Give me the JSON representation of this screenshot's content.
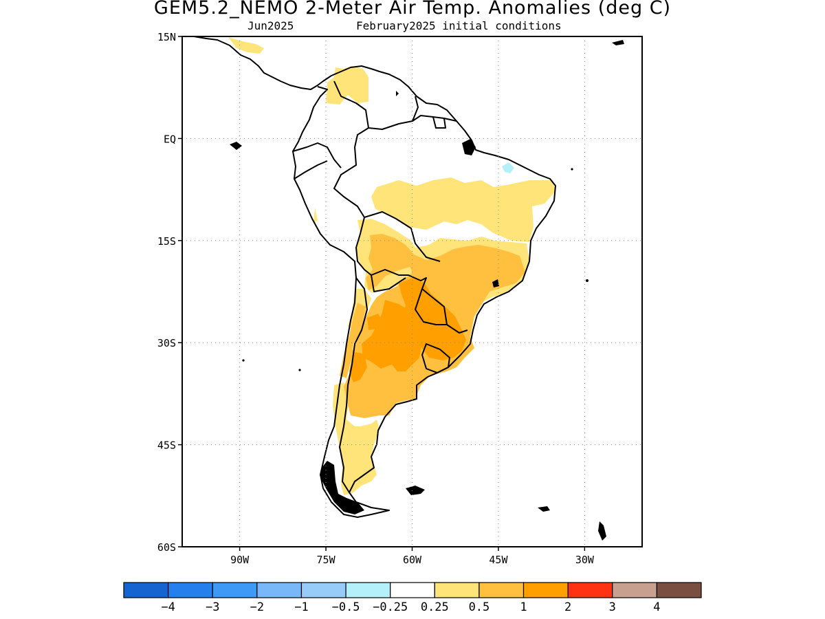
{
  "title": "GEM5.2_NEMO 2-Meter Air Temp. Anomalies (deg C)",
  "subtitle_left": "Jun2025",
  "subtitle_right": "February2025 initial conditions",
  "map": {
    "lon_range": [
      -100,
      -20
    ],
    "lat_range": [
      -60,
      15
    ],
    "lat_ticks": [
      {
        "value": 15,
        "label": "15N"
      },
      {
        "value": 0,
        "label": "EQ"
      },
      {
        "value": -15,
        "label": "15S"
      },
      {
        "value": -30,
        "label": "30S"
      },
      {
        "value": -45,
        "label": "45S"
      },
      {
        "value": -60,
        "label": "60S"
      }
    ],
    "lon_ticks": [
      {
        "value": -90,
        "label": "90W"
      },
      {
        "value": -75,
        "label": "75W"
      },
      {
        "value": -60,
        "label": "60W"
      },
      {
        "value": -45,
        "label": "45W"
      },
      {
        "value": -30,
        "label": "30W"
      }
    ],
    "grid": "dotted"
  },
  "colorbar": {
    "colors": [
      "#1664d0",
      "#2580ee",
      "#3e98f6",
      "#78b8f8",
      "#98ccf8",
      "#b4f0fa",
      "#ffffff",
      "#ffe47a",
      "#ffc040",
      "#ffa000",
      "#ff3312",
      "#c8a090",
      "#7a4e40"
    ],
    "labels": [
      "-4",
      "-3",
      "-2",
      "-1",
      "-0.5",
      "-0.25",
      "0.25",
      "0.5",
      "1",
      "2",
      "3",
      "4"
    ]
  },
  "anomaly_colors": {
    "class_0_25_0_5": "#ffe47a",
    "class_0_5_1": "#ffc040",
    "class_1_2": "#ffa000",
    "class_neg": "#b4f0fa"
  }
}
